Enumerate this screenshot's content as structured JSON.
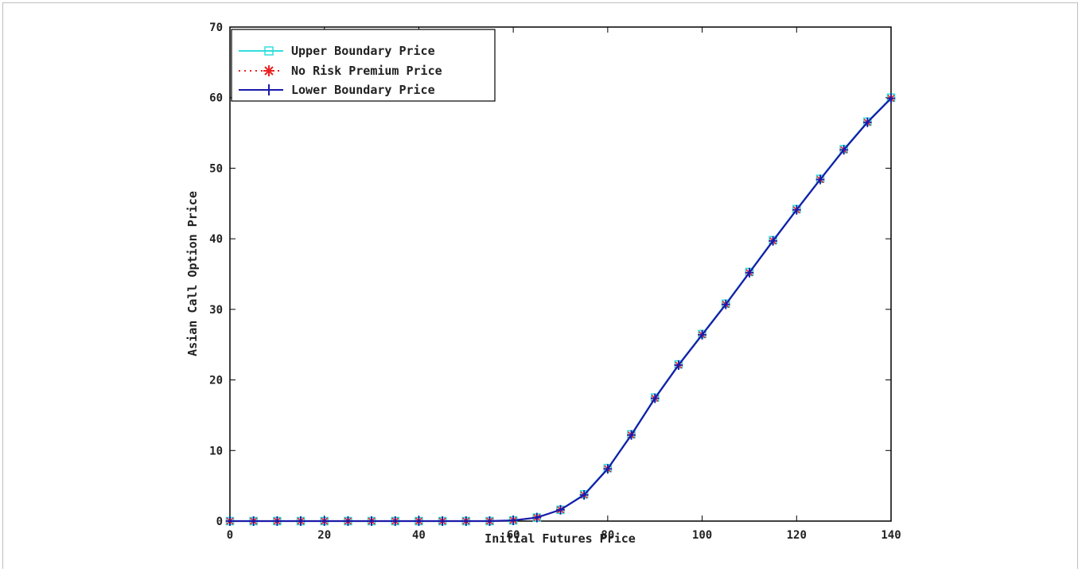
{
  "chart_data": {
    "type": "line",
    "title": "",
    "xlabel": "Initial Futures Price",
    "ylabel": "Asian Call Option Price",
    "xlim": [
      0,
      140
    ],
    "ylim": [
      0,
      70
    ],
    "xticks": [
      0,
      20,
      40,
      60,
      80,
      100,
      120,
      140
    ],
    "yticks": [
      0,
      10,
      20,
      30,
      40,
      50,
      60,
      70
    ],
    "xtick_labels": [
      "0",
      "20",
      "40",
      "60",
      "80",
      "100",
      "120",
      "140"
    ],
    "ytick_labels": [
      "0",
      "10",
      "20",
      "30",
      "40",
      "50",
      "60",
      "70"
    ],
    "grid": false,
    "legend_position": "top-left",
    "x": [
      0,
      5,
      10,
      15,
      20,
      25,
      30,
      35,
      40,
      45,
      50,
      55,
      60,
      65,
      70,
      75,
      80,
      85,
      90,
      95,
      100,
      105,
      110,
      115,
      120,
      125,
      130,
      135,
      140
    ],
    "series": [
      {
        "name": "Upper Boundary Price",
        "color": "#33dddd",
        "line_style": "solid",
        "marker": "square",
        "values": [
          0,
          0,
          0,
          0,
          0,
          0,
          0,
          0,
          0,
          0,
          0,
          0,
          0.1,
          0.5,
          1.6,
          3.8,
          7.5,
          12.3,
          17.5,
          22.2,
          26.5,
          30.8,
          35.3,
          39.8,
          44.2,
          48.5,
          52.7,
          56.6,
          60.0
        ]
      },
      {
        "name": "No Risk Premium Price",
        "color": "#ee2222",
        "line_style": "dotted",
        "marker": "asterisk",
        "values": [
          0,
          0,
          0,
          0,
          0,
          0,
          0,
          0,
          0,
          0,
          0,
          0,
          0.1,
          0.5,
          1.6,
          3.7,
          7.4,
          12.2,
          17.4,
          22.1,
          26.4,
          30.7,
          35.2,
          39.7,
          44.1,
          48.4,
          52.6,
          56.5,
          59.9
        ]
      },
      {
        "name": "Lower Boundary Price",
        "color": "#1a1aaa",
        "line_style": "solid",
        "marker": "plus",
        "values": [
          0,
          0,
          0,
          0,
          0,
          0,
          0,
          0,
          0,
          0,
          0,
          0,
          0.1,
          0.5,
          1.6,
          3.7,
          7.4,
          12.2,
          17.4,
          22.1,
          26.4,
          30.7,
          35.2,
          39.7,
          44.1,
          48.4,
          52.6,
          56.5,
          59.9
        ]
      }
    ]
  }
}
